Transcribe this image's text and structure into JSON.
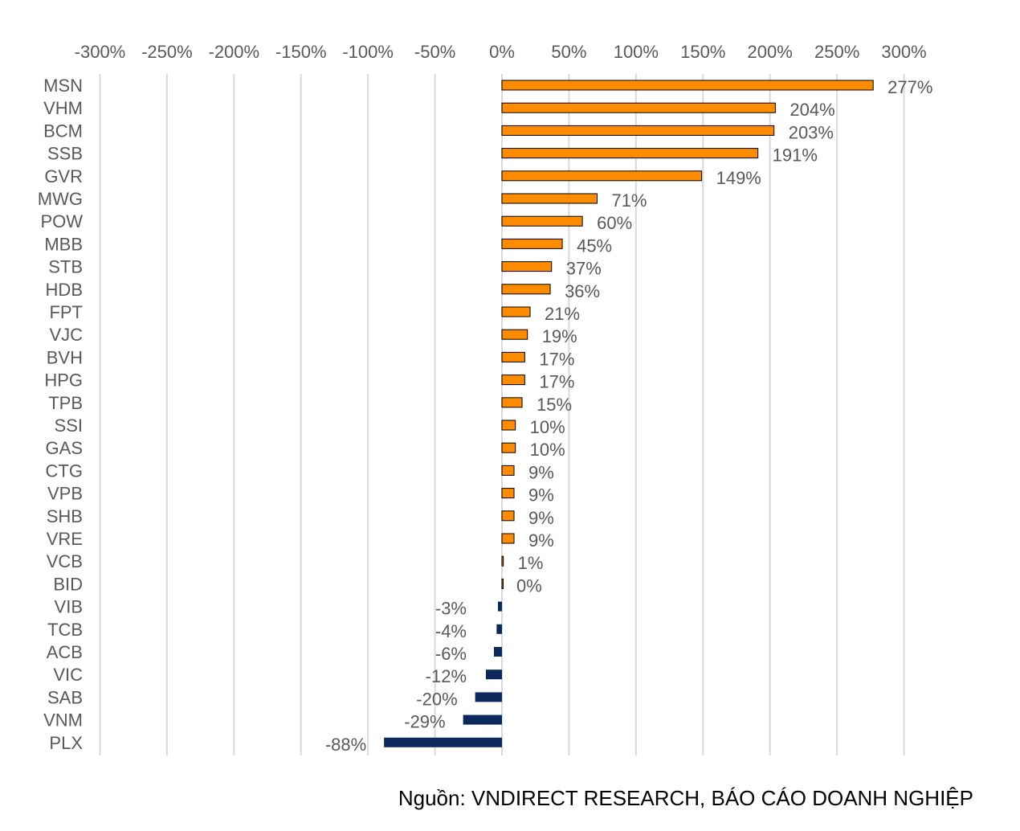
{
  "chart_data": {
    "type": "bar",
    "orientation": "horizontal",
    "x_tick_labels": [
      "-300%",
      "-250%",
      "-200%",
      "-150%",
      "-100%",
      "-50%",
      "0%",
      "50%",
      "100%",
      "150%",
      "200%",
      "250%",
      "300%"
    ],
    "xlim": [
      -300,
      300
    ],
    "grid": true,
    "colors": {
      "positive": "#FF8C00",
      "negative": "#0B2A5B",
      "grid": "#D9D9D9",
      "text": "#595959",
      "bar_border": "#000000"
    },
    "categories": [
      "MSN",
      "VHM",
      "BCM",
      "SSB",
      "GVR",
      "MWG",
      "POW",
      "MBB",
      "STB",
      "HDB",
      "FPT",
      "VJC",
      "BVH",
      "HPG",
      "TPB",
      "SSI",
      "GAS",
      "CTG",
      "VPB",
      "SHB",
      "VRE",
      "VCB",
      "BID",
      "VIB",
      "TCB",
      "ACB",
      "VIC",
      "SAB",
      "VNM",
      "PLX"
    ],
    "values": [
      277,
      204,
      203,
      191,
      149,
      71,
      60,
      45,
      37,
      36,
      21,
      19,
      17,
      17,
      15,
      10,
      10,
      9,
      9,
      9,
      9,
      1,
      0,
      -3,
      -4,
      -6,
      -12,
      -20,
      -29,
      -88
    ],
    "data_labels": [
      "277%",
      "204%",
      "203%",
      "191%",
      "149%",
      "71%",
      "60%",
      "45%",
      "37%",
      "36%",
      "21%",
      "19%",
      "17%",
      "17%",
      "15%",
      "10%",
      "10%",
      "9%",
      "9%",
      "9%",
      "9%",
      "1%",
      "0%",
      "-3%",
      "-4%",
      "-6%",
      "-12%",
      "-20%",
      "-29%",
      "-88%"
    ]
  },
  "source": "Nguồn: VNDIRECT RESEARCH, BÁO CÁO DOANH NGHIỆP"
}
